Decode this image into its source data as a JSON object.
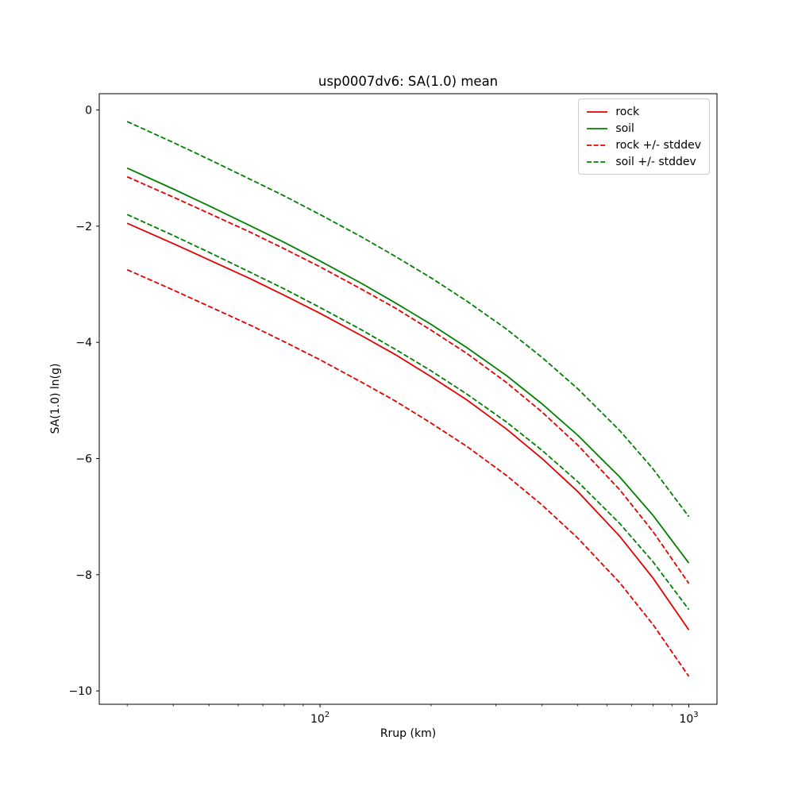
{
  "figure": {
    "title": "usp0007dv6: SA(1.0) mean",
    "xlabel": "Rrup (km)",
    "ylabel": "SA(1.0) ln(g)"
  },
  "chart_data": {
    "type": "line",
    "title": "usp0007dv6: SA(1.0) mean",
    "xlabel": "Rrup (km)",
    "ylabel": "SA(1.0) ln(g)",
    "x_scale": "log",
    "y_scale": "linear",
    "grid": false,
    "xlim": [
      25.2,
      1192
    ],
    "ylim": [
      -10.23,
      0.28
    ],
    "x": [
      30,
      40,
      50,
      65,
      80,
      100,
      130,
      160,
      200,
      250,
      320,
      400,
      500,
      650,
      800,
      1000
    ],
    "series": [
      {
        "name": "rock",
        "label": "rock",
        "color": "#e60000",
        "style": "solid",
        "values": [
          -1.95,
          -2.3,
          -2.58,
          -2.91,
          -3.19,
          -3.5,
          -3.89,
          -4.21,
          -4.59,
          -4.99,
          -5.49,
          -6.0,
          -6.57,
          -7.34,
          -8.06,
          -8.95
        ]
      },
      {
        "name": "soil",
        "label": "soil",
        "color": "#008000",
        "style": "solid",
        "values": [
          -1.0,
          -1.36,
          -1.65,
          -2.0,
          -2.28,
          -2.6,
          -2.99,
          -3.32,
          -3.69,
          -4.09,
          -4.57,
          -5.06,
          -5.6,
          -6.32,
          -6.98,
          -7.8
        ]
      },
      {
        "name": "rock-plus-stddev",
        "label": "rock +/- stddev",
        "color": "#e60000",
        "style": "dashed",
        "values": [
          -1.15,
          -1.5,
          -1.78,
          -2.11,
          -2.39,
          -2.7,
          -3.09,
          -3.41,
          -3.79,
          -4.19,
          -4.69,
          -5.2,
          -5.77,
          -6.54,
          -7.26,
          -8.15
        ]
      },
      {
        "name": "rock-minus-stddev",
        "label": "rock +/- stddev",
        "color": "#e60000",
        "style": "dashed",
        "values": [
          -2.75,
          -3.1,
          -3.38,
          -3.71,
          -3.99,
          -4.3,
          -4.69,
          -5.01,
          -5.39,
          -5.79,
          -6.29,
          -6.8,
          -7.37,
          -8.14,
          -8.86,
          -9.75
        ]
      },
      {
        "name": "soil-plus-stddev",
        "label": "soil +/- stddev",
        "color": "#008000",
        "style": "dashed",
        "values": [
          -0.2,
          -0.56,
          -0.85,
          -1.2,
          -1.48,
          -1.8,
          -2.19,
          -2.52,
          -2.89,
          -3.29,
          -3.77,
          -4.26,
          -4.8,
          -5.52,
          -6.18,
          -7.0
        ]
      },
      {
        "name": "soil-minus-stddev",
        "label": "soil +/- stddev",
        "color": "#008000",
        "style": "dashed",
        "values": [
          -1.8,
          -2.16,
          -2.45,
          -2.8,
          -3.08,
          -3.4,
          -3.79,
          -4.12,
          -4.49,
          -4.89,
          -5.37,
          -5.86,
          -6.4,
          -7.12,
          -7.78,
          -8.6
        ]
      }
    ],
    "stddev": 0.8,
    "yticks": {
      "values": [
        0,
        -2,
        -4,
        -6,
        -8,
        -10
      ],
      "labels": [
        "0",
        "−2",
        "−4",
        "−6",
        "−8",
        "−10"
      ]
    },
    "xticks": {
      "values": [
        100,
        1000
      ],
      "labels": [
        {
          "base": "10",
          "exp": "2"
        },
        {
          "base": "10",
          "exp": "3"
        }
      ]
    },
    "legend": {
      "position": "upper right",
      "items": [
        {
          "label": "rock",
          "color": "#e60000",
          "style": "solid"
        },
        {
          "label": "soil",
          "color": "#008000",
          "style": "solid"
        },
        {
          "label": "rock +/- stddev",
          "color": "#e60000",
          "style": "dashed"
        },
        {
          "label": "soil +/- stddev",
          "color": "#008000",
          "style": "dashed"
        }
      ]
    }
  }
}
